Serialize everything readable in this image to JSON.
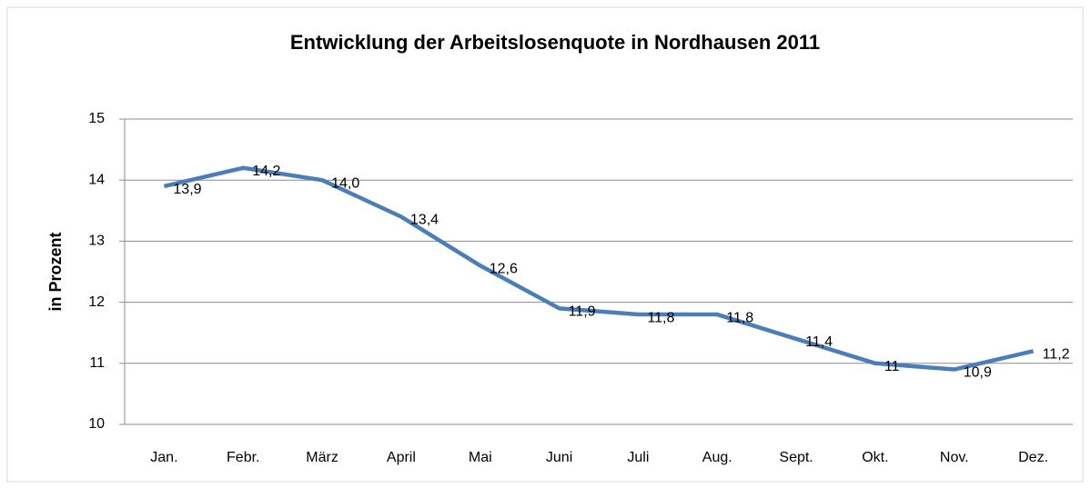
{
  "chart_data": {
    "type": "line",
    "title": "Entwicklung der Arbeitslosenquote in Nordhausen 2011",
    "y_label": "in Prozent",
    "categories": [
      "Jan.",
      "Febr.",
      "März",
      "April",
      "Mai",
      "Juni",
      "Juli",
      "Aug.",
      "Sept.",
      "Okt.",
      "Nov.",
      "Dez."
    ],
    "values": [
      13.9,
      14.2,
      14.0,
      13.4,
      12.6,
      11.9,
      11.8,
      11.8,
      11.4,
      11,
      10.9,
      11.2
    ],
    "value_labels": [
      "13,9",
      "14,2",
      "14,0",
      "13,4",
      "12,6",
      "11,9",
      "11,8",
      "11,8",
      "11,4",
      "11",
      "10,9",
      "11,2"
    ],
    "color": "#4a7ebb",
    "ylim": [
      10,
      15
    ],
    "yticks": [
      10,
      11,
      12,
      13,
      14,
      15
    ],
    "grid": true
  }
}
